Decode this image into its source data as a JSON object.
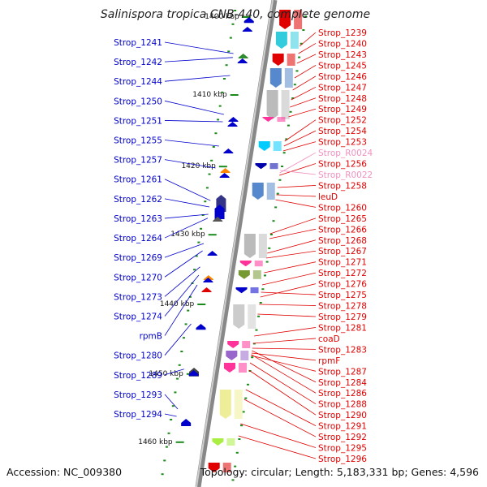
{
  "title": "Salinispora tropica CNB-440, complete genome",
  "accession": "Accession: NC_009380",
  "topology": "Topology: circular; Length: 5,183,331 bp; Genes: 4,596",
  "kbp_ticks": [
    {
      "label": "1400 kbp",
      "frac": 0.035
    },
    {
      "label": "1410 kbp",
      "frac": 0.195
    },
    {
      "label": "1420 kbp",
      "frac": 0.342
    },
    {
      "label": "1430 kbp",
      "frac": 0.482
    },
    {
      "label": "1440 kbp",
      "frac": 0.625
    },
    {
      "label": "1450 kbp",
      "frac": 0.768
    },
    {
      "label": "1460 kbp",
      "frac": 0.908
    }
  ],
  "left_labels": [
    {
      "text": "Strop_1241",
      "target": 0.11
    },
    {
      "text": "Strop_1242",
      "target": 0.118
    },
    {
      "text": "Strop_1244",
      "target": 0.155
    },
    {
      "text": "Strop_1250",
      "target": 0.235
    },
    {
      "text": "Strop_1251",
      "target": 0.25
    },
    {
      "text": "Strop_1255",
      "target": 0.3
    },
    {
      "text": "Strop_1257",
      "target": 0.345
    },
    {
      "text": "Strop_1261",
      "target": 0.412
    },
    {
      "text": "Strop_1262",
      "target": 0.425
    },
    {
      "text": "Strop_1263",
      "target": 0.44
    },
    {
      "text": "Strop_1264",
      "target": 0.448
    },
    {
      "text": "Strop_1269",
      "target": 0.5
    },
    {
      "text": "Strop_1270",
      "target": 0.515
    },
    {
      "text": "Strop_1273",
      "target": 0.548
    },
    {
      "text": "Strop_1274",
      "target": 0.565
    },
    {
      "text": "rpmB",
      "target": 0.585
    },
    {
      "text": "Strop_1280",
      "target": 0.665
    },
    {
      "text": "Strop_1289",
      "target": 0.758
    },
    {
      "text": "Strop_1293",
      "target": 0.84
    },
    {
      "text": "Strop_1294",
      "target": 0.855
    }
  ],
  "right_labels": [
    {
      "text": "Strop_1239",
      "color": "red",
      "target": 0.095
    },
    {
      "text": "Strop_1240",
      "color": "red",
      "target": 0.11
    },
    {
      "text": "Strop_1243",
      "color": "red",
      "target": 0.13
    },
    {
      "text": "Strop_1245",
      "color": "red",
      "target": 0.16
    },
    {
      "text": "Strop_1246",
      "color": "red",
      "target": 0.185
    },
    {
      "text": "Strop_1247",
      "color": "red",
      "target": 0.205
    },
    {
      "text": "Strop_1248",
      "color": "red",
      "target": 0.22
    },
    {
      "text": "Strop_1249",
      "color": "red",
      "target": 0.24
    },
    {
      "text": "Strop_1252",
      "color": "red",
      "target": 0.29
    },
    {
      "text": "Strop_1254",
      "color": "red",
      "target": 0.3
    },
    {
      "text": "Strop_1253",
      "color": "red",
      "target": 0.31
    },
    {
      "text": "Strop_R0024",
      "color": "pink",
      "target": 0.355
    },
    {
      "text": "Strop_1256",
      "color": "red",
      "target": 0.36
    },
    {
      "text": "Strop_R0022",
      "color": "pink",
      "target": 0.35
    },
    {
      "text": "Strop_1258",
      "color": "red",
      "target": 0.385
    },
    {
      "text": "leuD",
      "color": "red",
      "target": 0.4
    },
    {
      "text": "Strop_1260",
      "color": "red",
      "target": 0.41
    },
    {
      "text": "Strop_1265",
      "color": "red",
      "target": 0.48
    },
    {
      "text": "Strop_1266",
      "color": "red",
      "target": 0.49
    },
    {
      "text": "Strop_1268",
      "color": "red",
      "target": 0.52
    },
    {
      "text": "Strop_1267",
      "color": "red",
      "target": 0.53
    },
    {
      "text": "Strop_1271",
      "color": "red",
      "target": 0.56
    },
    {
      "text": "Strop_1272",
      "color": "red",
      "target": 0.585
    },
    {
      "text": "Strop_1276",
      "color": "red",
      "target": 0.61
    },
    {
      "text": "Strop_1275",
      "color": "red",
      "target": 0.6
    },
    {
      "text": "Strop_1278",
      "color": "red",
      "target": 0.625
    },
    {
      "text": "Strop_1279",
      "color": "red",
      "target": 0.645
    },
    {
      "text": "Strop_1281",
      "color": "red",
      "target": 0.69
    },
    {
      "text": "coaD",
      "color": "red",
      "target": 0.705
    },
    {
      "text": "Strop_1283",
      "color": "red",
      "target": 0.715
    },
    {
      "text": "rpmF",
      "color": "red",
      "target": 0.725
    },
    {
      "text": "Strop_1287",
      "color": "red",
      "target": 0.73
    },
    {
      "text": "Strop_1284",
      "color": "red",
      "target": 0.72
    },
    {
      "text": "Strop_1286",
      "color": "red",
      "target": 0.728
    },
    {
      "text": "Strop_1288",
      "color": "red",
      "target": 0.745
    },
    {
      "text": "Strop_1290",
      "color": "red",
      "target": 0.76
    },
    {
      "text": "Strop_1291",
      "color": "red",
      "target": 0.8
    },
    {
      "text": "Strop_1292",
      "color": "red",
      "target": 0.82
    },
    {
      "text": "Strop_1295",
      "color": "red",
      "target": 0.87
    },
    {
      "text": "Strop_1296",
      "color": "red",
      "target": 0.895
    }
  ],
  "minus_genes": [
    {
      "frac": 0.035,
      "len": 0.012,
      "color": "#0000cc"
    },
    {
      "frac": 0.055,
      "len": 0.01,
      "color": "#0000cc"
    },
    {
      "frac": 0.11,
      "len": 0.01,
      "color": "#2e8b2e"
    },
    {
      "frac": 0.12,
      "len": 0.008,
      "color": "#0000cc"
    },
    {
      "frac": 0.24,
      "len": 0.008,
      "color": "#0000cc"
    },
    {
      "frac": 0.25,
      "len": 0.008,
      "color": "#0000cc"
    },
    {
      "frac": 0.305,
      "len": 0.01,
      "color": "#0000cc"
    },
    {
      "frac": 0.345,
      "len": 0.008,
      "color": "#ff8800"
    },
    {
      "frac": 0.355,
      "len": 0.006,
      "color": "#0000cc"
    },
    {
      "frac": 0.4,
      "len": 0.035,
      "color": "#333388"
    },
    {
      "frac": 0.42,
      "len": 0.03,
      "color": "#0000cc"
    },
    {
      "frac": 0.445,
      "len": 0.01,
      "color": "#555555"
    },
    {
      "frac": 0.515,
      "len": 0.008,
      "color": "#0000cc"
    },
    {
      "frac": 0.565,
      "len": 0.005,
      "color": "#ff8800"
    },
    {
      "frac": 0.57,
      "len": 0.008,
      "color": "#0000cc"
    },
    {
      "frac": 0.59,
      "len": 0.003,
      "color": "#e00000"
    },
    {
      "frac": 0.665,
      "len": 0.012,
      "color": "#0000cc"
    },
    {
      "frac": 0.755,
      "len": 0.018,
      "color": "#444444"
    },
    {
      "frac": 0.76,
      "len": 0.012,
      "color": "#0000cc"
    },
    {
      "frac": 0.86,
      "len": 0.015,
      "color": "#0000cc"
    }
  ],
  "plus_genes": [
    {
      "frac": 0.02,
      "len": 0.04,
      "color": "#e00000"
    },
    {
      "frac": 0.065,
      "len": 0.035,
      "color": "#33ccdd"
    },
    {
      "frac": 0.11,
      "len": 0.025,
      "color": "#e00000"
    },
    {
      "frac": 0.14,
      "len": 0.04,
      "color": "#5588cc"
    },
    {
      "frac": 0.185,
      "len": 0.06,
      "color": "#bbbbbb"
    },
    {
      "frac": 0.24,
      "len": 0.01,
      "color": "#ff3399"
    },
    {
      "frac": 0.29,
      "len": 0.02,
      "color": "#00ccff"
    },
    {
      "frac": 0.335,
      "len": 0.012,
      "color": "#0000aa"
    },
    {
      "frac": 0.375,
      "len": 0.035,
      "color": "#5588cc"
    },
    {
      "frac": 0.48,
      "len": 0.05,
      "color": "#bbbbbb"
    },
    {
      "frac": 0.535,
      "len": 0.012,
      "color": "#ff3399"
    },
    {
      "frac": 0.555,
      "len": 0.018,
      "color": "#779933"
    },
    {
      "frac": 0.59,
      "len": 0.012,
      "color": "#0000cc"
    },
    {
      "frac": 0.625,
      "len": 0.05,
      "color": "#cccccc"
    },
    {
      "frac": 0.7,
      "len": 0.015,
      "color": "#ff3399"
    },
    {
      "frac": 0.72,
      "len": 0.02,
      "color": "#9966cc"
    },
    {
      "frac": 0.745,
      "len": 0.02,
      "color": "#ff3399"
    },
    {
      "frac": 0.8,
      "len": 0.06,
      "color": "#eeee99"
    },
    {
      "frac": 0.9,
      "len": 0.015,
      "color": "#aaee44"
    },
    {
      "frac": 0.95,
      "len": 0.02,
      "color": "#e00000"
    }
  ]
}
